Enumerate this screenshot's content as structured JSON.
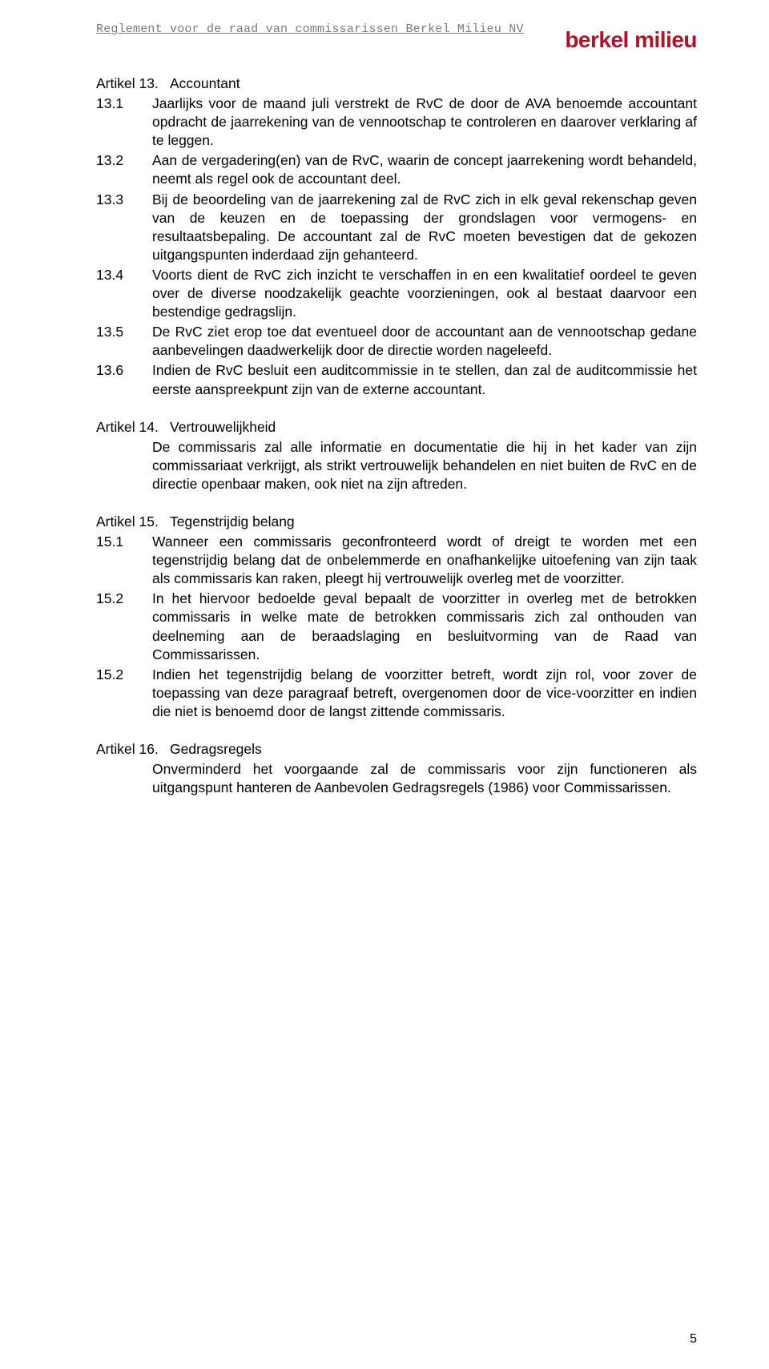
{
  "header": {
    "running_title": "Reglement voor de raad van commissarissen Berkel Milieu NV",
    "logo_text": "berkel milieu",
    "logo_color": "#b01329"
  },
  "articles": [
    {
      "number": "Artikel 13.",
      "title": "Accountant",
      "intro": null,
      "clauses": [
        {
          "num": "13.1",
          "text": "Jaarlijks voor de maand juli verstrekt de RvC de door de AVA benoemde accountant opdracht de jaarrekening van de vennootschap te controleren en daarover verklaring af te leggen."
        },
        {
          "num": "13.2",
          "text": "Aan de vergadering(en) van de RvC, waarin de concept jaarrekening wordt behandeld, neemt als regel ook de accountant deel."
        },
        {
          "num": "13.3",
          "text": "Bij de beoordeling van de jaarrekening zal de RvC zich in elk geval rekenschap geven van de keuzen en de toepassing der grondslagen voor vermogens- en resultaatsbepaling. De accountant zal de RvC moeten bevestigen dat de gekozen uitgangspunten inderdaad zijn gehanteerd."
        },
        {
          "num": "13.4",
          "text": "Voorts dient de RvC zich inzicht te verschaffen in en een kwalitatief oordeel te geven over de diverse noodzakelijk geachte voorzieningen, ook al bestaat daarvoor een bestendige gedragslijn."
        },
        {
          "num": "13.5",
          "text": "De RvC ziet erop toe dat eventueel door de accountant aan de vennootschap gedane aanbevelingen daadwerkelijk door de directie worden nageleefd."
        },
        {
          "num": "13.6",
          "text": "Indien de RvC besluit een auditcommissie in te stellen, dan zal de auditcommissie het eerste aanspreekpunt zijn van de externe accountant."
        }
      ]
    },
    {
      "number": "Artikel 14.",
      "title": "Vertrouwelijkheid",
      "intro": "De commissaris zal alle informatie en documentatie die hij in het kader van zijn commissariaat verkrijgt, als strikt vertrouwelijk behandelen en niet buiten de RvC en de directie openbaar maken, ook niet na zijn aftreden.",
      "clauses": []
    },
    {
      "number": "Artikel 15.",
      "title": "Tegenstrijdig belang",
      "intro": null,
      "clauses": [
        {
          "num": "15.1",
          "text": "Wanneer een commissaris geconfronteerd wordt of dreigt te worden met een tegenstrijdig belang dat de onbelemmerde en onafhankelijke uitoefening van zijn taak als commissaris kan raken, pleegt hij vertrouwelijk overleg met de voorzitter."
        },
        {
          "num": "15.2",
          "text": "In het hiervoor bedoelde geval bepaalt de voorzitter in overleg met de betrokken commissaris in welke mate de betrokken commissaris zich zal onthouden van deelneming aan de beraadslaging en besluitvorming van de Raad van Commissarissen."
        },
        {
          "num": "15.2",
          "text": "Indien het tegenstrijdig belang de voorzitter betreft, wordt zijn rol, voor zover de toepassing van deze paragraaf betreft, overgenomen door de vice-voorzitter en indien die niet is benoemd door de langst zittende commissaris."
        }
      ]
    },
    {
      "number": "Artikel 16.",
      "title": "Gedragsregels",
      "intro": "Onverminderd het voorgaande zal de commissaris voor zijn functioneren als uitgangspunt hanteren de Aanbevolen Gedragsregels (1986) voor Commissarissen.",
      "clauses": []
    }
  ],
  "page_number": "5",
  "colors": {
    "text": "#000000",
    "header_gray": "#7a7a7a",
    "background": "#ffffff"
  },
  "typography": {
    "body_font": "Arial",
    "header_font": "Courier New",
    "body_size_pt": 13,
    "logo_size_pt": 21,
    "logo_weight": "bold"
  }
}
